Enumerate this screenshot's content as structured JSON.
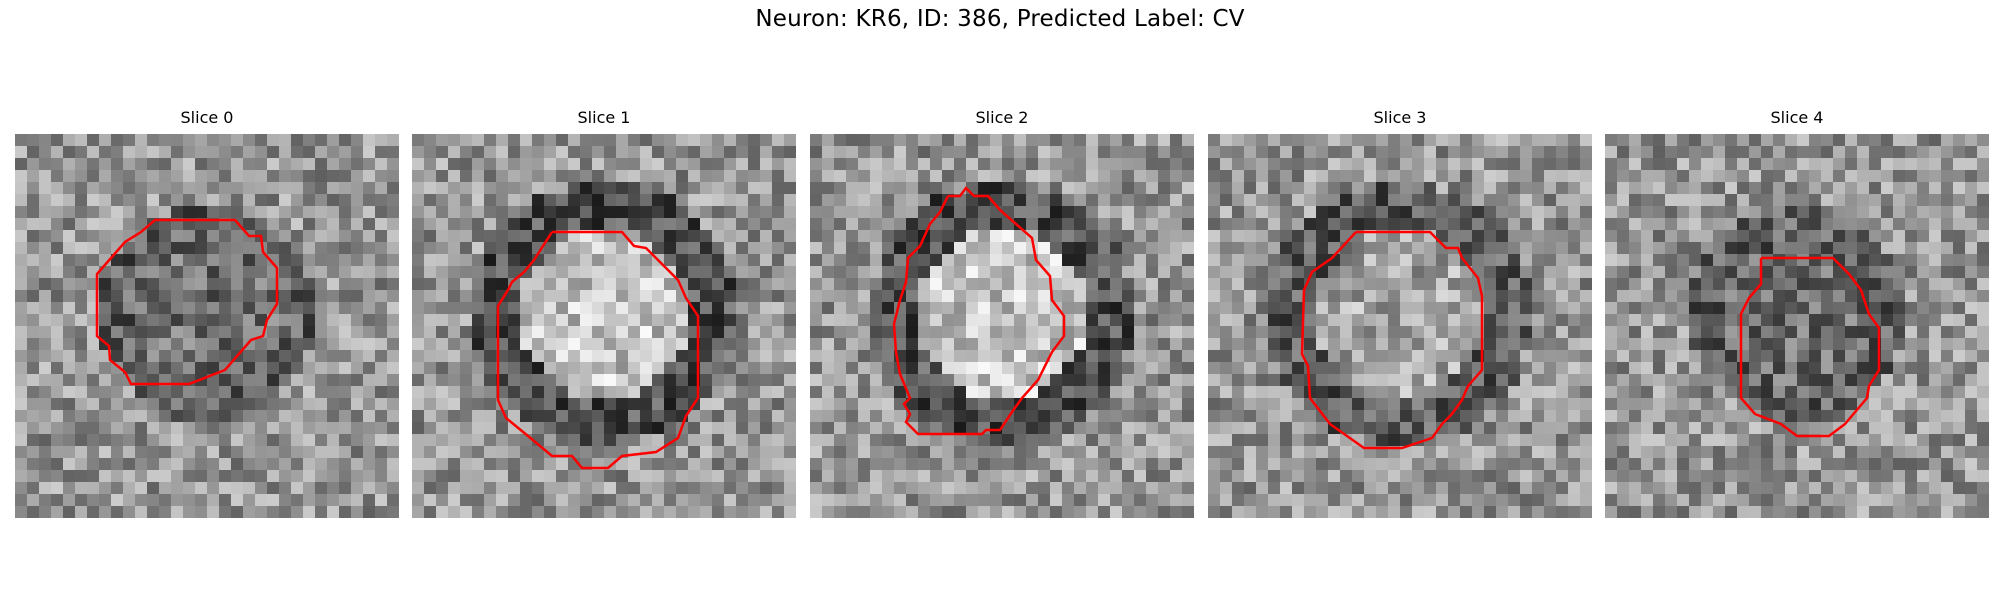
{
  "figure": {
    "title": "Neuron: KR6, ID: 386, Predicted Label: CV"
  },
  "colors": {
    "contour": "#ff0000",
    "background": "#ffffff"
  },
  "panels": [
    {
      "title": "Slice 0",
      "seed": 11,
      "blob": "dark"
    },
    {
      "title": "Slice 1",
      "seed": 23,
      "blob": "bright"
    },
    {
      "title": "Slice 2",
      "seed": 37,
      "blob": "bright"
    },
    {
      "title": "Slice 3",
      "seed": 51,
      "blob": "mid"
    },
    {
      "title": "Slice 4",
      "seed": 67,
      "blob": "dark"
    }
  ]
}
